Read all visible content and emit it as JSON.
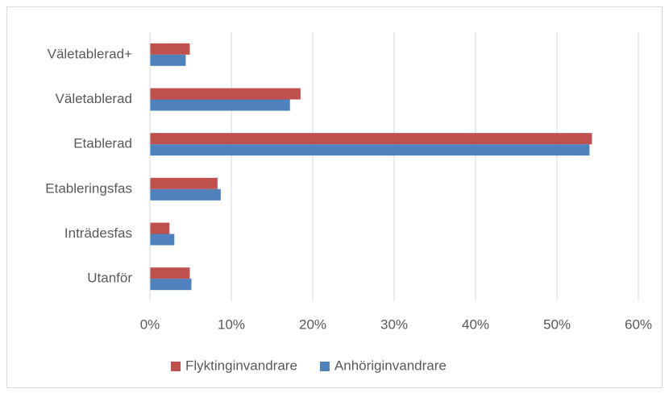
{
  "chart_data": {
    "type": "hbar",
    "categories": [
      "Väletablerad+",
      "Väletablerad",
      "Etablerad",
      "Etableringsfas",
      "Inträdesfas",
      "Utanför"
    ],
    "series": [
      {
        "name": "Flyktinginvandrare",
        "color": "#c0504d",
        "values": [
          4.9,
          18.5,
          54.3,
          8.3,
          2.4,
          4.9
        ]
      },
      {
        "name": "Anhöriginvandrare",
        "color": "#4f81bd",
        "values": [
          4.4,
          17.2,
          54.0,
          8.7,
          3.0,
          5.1
        ]
      }
    ],
    "xlim": [
      0,
      60
    ],
    "xticks": [
      {
        "value": 0,
        "label": "0%"
      },
      {
        "value": 10,
        "label": "10%"
      },
      {
        "value": 20,
        "label": "20%"
      },
      {
        "value": 30,
        "label": "30%"
      },
      {
        "value": 40,
        "label": "40%"
      },
      {
        "value": 50,
        "label": "50%"
      },
      {
        "value": 60,
        "label": "60%"
      }
    ],
    "grid": true,
    "legend": "bottom"
  }
}
